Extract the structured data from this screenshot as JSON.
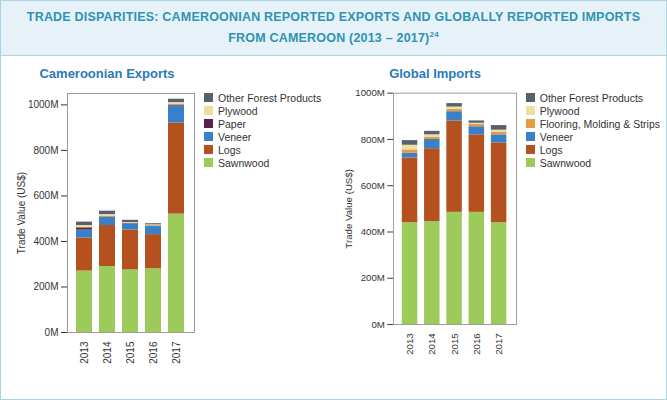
{
  "header": {
    "title": "TRADE DISPARITIES: CAMEROONIAN REPORTED EXPORTS AND GLOBALLY REPORTED IMPORTS FROM CAMEROON (2013 – 2017)",
    "note": "24"
  },
  "chart_data": [
    {
      "type": "bar",
      "title": "Cameroonian Exports",
      "stacked": true,
      "grid": false,
      "y_label": "Trade Value (US$)",
      "categories": [
        "2013",
        "2014",
        "2015",
        "2016",
        "2017"
      ],
      "ylim": [
        0,
        1050
      ],
      "yticks": [
        {
          "value": 0,
          "label": "0M"
        },
        {
          "value": 200,
          "label": "200M"
        },
        {
          "value": 400,
          "label": "400M"
        },
        {
          "value": 600,
          "label": "600M"
        },
        {
          "value": 800,
          "label": "800M"
        },
        {
          "value": 1000,
          "label": "1000M"
        }
      ],
      "series": [
        {
          "name": "Sawnwood",
          "color": "#9dcb5b",
          "values": [
            270,
            290,
            275,
            280,
            520
          ]
        },
        {
          "name": "Logs",
          "color": "#b4511f",
          "values": [
            145,
            180,
            175,
            150,
            400
          ]
        },
        {
          "name": "Veneer",
          "color": "#3a80c6",
          "values": [
            35,
            35,
            25,
            35,
            75
          ]
        },
        {
          "name": "Paper",
          "color": "#5b1f4c",
          "values": [
            10,
            3,
            3,
            3,
            5
          ]
        },
        {
          "name": "Plywood",
          "color": "#efdf9f",
          "values": [
            10,
            10,
            5,
            5,
            10
          ]
        },
        {
          "name": "Other Forest Products",
          "color": "#56616d",
          "values": [
            15,
            15,
            10,
            5,
            15
          ]
        }
      ]
    },
    {
      "type": "bar",
      "title": "Global Imports",
      "stacked": true,
      "grid": false,
      "y_label": "Trade Value (US$)",
      "categories": [
        "2013",
        "2014",
        "2015",
        "2016",
        "2017"
      ],
      "ylim": [
        0,
        1000
      ],
      "yticks": [
        {
          "value": 0,
          "label": "0M"
        },
        {
          "value": 200,
          "label": "200M"
        },
        {
          "value": 400,
          "label": "400M"
        },
        {
          "value": 600,
          "label": "600M"
        },
        {
          "value": 800,
          "label": "800M"
        },
        {
          "value": 1000,
          "label": "1000M"
        }
      ],
      "series": [
        {
          "name": "Sawnwood",
          "color": "#9dcb5b",
          "values": [
            440,
            445,
            485,
            485,
            440
          ]
        },
        {
          "name": "Logs",
          "color": "#b4511f",
          "values": [
            280,
            315,
            395,
            335,
            345
          ]
        },
        {
          "name": "Veneer",
          "color": "#3a80c6",
          "values": [
            20,
            40,
            40,
            35,
            35
          ]
        },
        {
          "name": "Flooring, Molding & Strips",
          "color": "#e59a44",
          "values": [
            15,
            10,
            10,
            10,
            10
          ]
        },
        {
          "name": "Plywood",
          "color": "#efdf9f",
          "values": [
            20,
            10,
            10,
            5,
            10
          ]
        },
        {
          "name": "Other Forest Products",
          "color": "#56616d",
          "values": [
            20,
            15,
            15,
            10,
            20
          ]
        }
      ]
    }
  ]
}
